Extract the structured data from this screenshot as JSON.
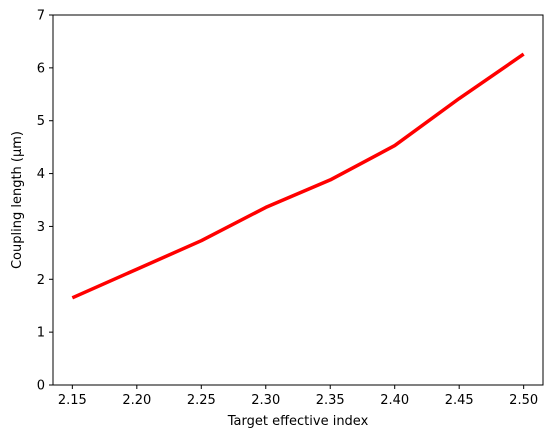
{
  "chart_data": {
    "type": "line",
    "title": "",
    "xlabel": "Target effective index",
    "ylabel": "Coupling length (μm)",
    "xlim": [
      2.135,
      2.515
    ],
    "ylim": [
      0,
      7
    ],
    "xticks": [
      2.15,
      2.2,
      2.25,
      2.3,
      2.35,
      2.4,
      2.45,
      2.5
    ],
    "xtick_labels": [
      "2.15",
      "2.20",
      "2.25",
      "2.30",
      "2.35",
      "2.40",
      "2.45",
      "2.50"
    ],
    "yticks": [
      0,
      1,
      2,
      3,
      4,
      5,
      6,
      7
    ],
    "ytick_labels": [
      "0",
      "1",
      "2",
      "3",
      "4",
      "5",
      "6",
      "7"
    ],
    "grid": false,
    "legend": "none",
    "series": [
      {
        "color": "#ff0000",
        "x": [
          2.15,
          2.2,
          2.25,
          2.3,
          2.35,
          2.4,
          2.45,
          2.5
        ],
        "y": [
          1.65,
          2.19,
          2.73,
          3.36,
          3.88,
          4.53,
          5.42,
          6.26
        ]
      }
    ]
  }
}
